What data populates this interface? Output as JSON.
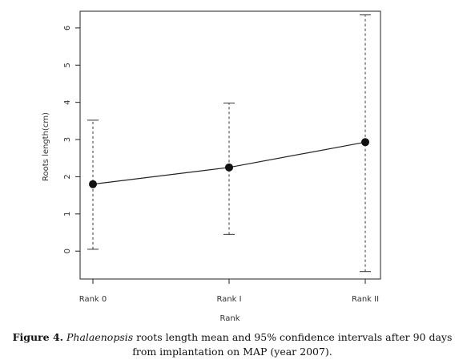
{
  "chart_data": {
    "type": "scatter",
    "categories": [
      "Rank 0",
      "Rank I",
      "Rank II"
    ],
    "values": [
      1.8,
      2.25,
      2.93
    ],
    "ci_lower": [
      0.05,
      0.45,
      -0.55
    ],
    "ci_upper": [
      3.52,
      3.98,
      6.35
    ],
    "connect_points": true,
    "xlabel": "Rank",
    "ylabel": "Roots length(cm)",
    "ylim": [
      -0.75,
      6.45
    ],
    "yticks": [
      0,
      1,
      2,
      3,
      4,
      5,
      6
    ],
    "grid": false
  },
  "caption": {
    "label": "Figure 4.",
    "genus": "Phalaenopsis",
    "text_1": "roots length mean and 95% confidence intervals after 90 days",
    "text_2": "from implantation on",
    "acronym": "MAP",
    "text_3": "(year 2007)."
  }
}
